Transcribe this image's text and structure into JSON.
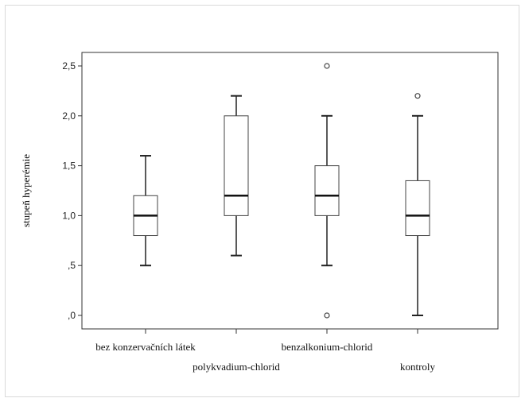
{
  "chart_data": {
    "type": "boxplot",
    "ylabel": "stupeň hyperémie",
    "xlabel": "",
    "ylim": [
      -0.1,
      2.7
    ],
    "yticks": [
      0.0,
      0.5,
      1.0,
      1.5,
      2.0,
      2.5
    ],
    "ytick_labels": [
      ",0",
      ",5",
      "1,0",
      "1,5",
      "2,0",
      "2,5"
    ],
    "categories": [
      "bez konzervačních látek",
      "polykvadium-chlorid",
      "benzalkonium-chlorid",
      "kontroly"
    ],
    "boxes": [
      {
        "category": "bez konzervačních látek",
        "whisker_low": 0.5,
        "q1": 0.8,
        "median": 1.0,
        "q3": 1.2,
        "whisker_high": 1.6,
        "outliers": []
      },
      {
        "category": "polykvadium-chlorid",
        "whisker_low": 0.6,
        "q1": 1.0,
        "median": 1.2,
        "q3": 2.0,
        "whisker_high": 2.2,
        "outliers": []
      },
      {
        "category": "benzalkonium-chlorid",
        "whisker_low": 0.5,
        "q1": 1.0,
        "median": 1.2,
        "q3": 1.5,
        "whisker_high": 2.0,
        "outliers": [
          0.0,
          2.5
        ]
      },
      {
        "category": "kontroly",
        "whisker_low": 0.0,
        "q1": 0.8,
        "median": 1.0,
        "q3": 1.35,
        "whisker_high": 2.0,
        "outliers": [
          2.2
        ]
      }
    ],
    "grid": false
  }
}
